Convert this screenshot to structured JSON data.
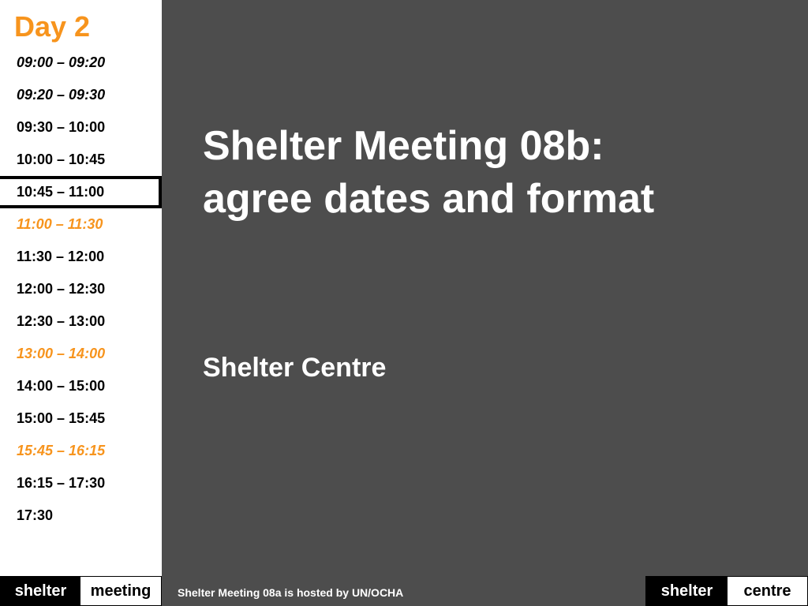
{
  "sidebar": {
    "day_title": "Day 2",
    "slots": [
      {
        "time": "09:00 – 09:20",
        "style": "italic"
      },
      {
        "time": "09:20 – 09:30",
        "style": "italic"
      },
      {
        "time": "09:30 – 10:00",
        "style": "normal"
      },
      {
        "time": "10:00 – 10:45",
        "style": "normal"
      },
      {
        "time": "10:45 – 11:00",
        "style": "current"
      },
      {
        "time": "11:00 – 11:30",
        "style": "break"
      },
      {
        "time": "11:30 – 12:00",
        "style": "normal"
      },
      {
        "time": "12:00 – 12:30",
        "style": "normal"
      },
      {
        "time": "12:30 – 13:00",
        "style": "normal"
      },
      {
        "time": "13:00 – 14:00",
        "style": "break"
      },
      {
        "time": "14:00 – 15:00",
        "style": "normal"
      },
      {
        "time": "15:00 – 15:45",
        "style": "normal"
      },
      {
        "time": "15:45 – 16:15",
        "style": "break"
      },
      {
        "time": "16:15 – 17:30",
        "style": "normal"
      },
      {
        "time": "17:30",
        "style": "normal"
      }
    ]
  },
  "main": {
    "title_line1": "Shelter Meeting 08b:",
    "title_line2": "agree dates and format",
    "presenter": "Shelter Centre"
  },
  "footer": {
    "logo_left": {
      "part1": "shelter",
      "part2": "meeting"
    },
    "note": "Shelter Meeting 08a is hosted by UN/OCHA",
    "logo_right": {
      "part1": "shelter",
      "part2": "centre"
    }
  },
  "colors": {
    "accent": "#f7941d",
    "background": "#4d4d4d",
    "text_dark": "#000000",
    "text_light": "#ffffff"
  }
}
